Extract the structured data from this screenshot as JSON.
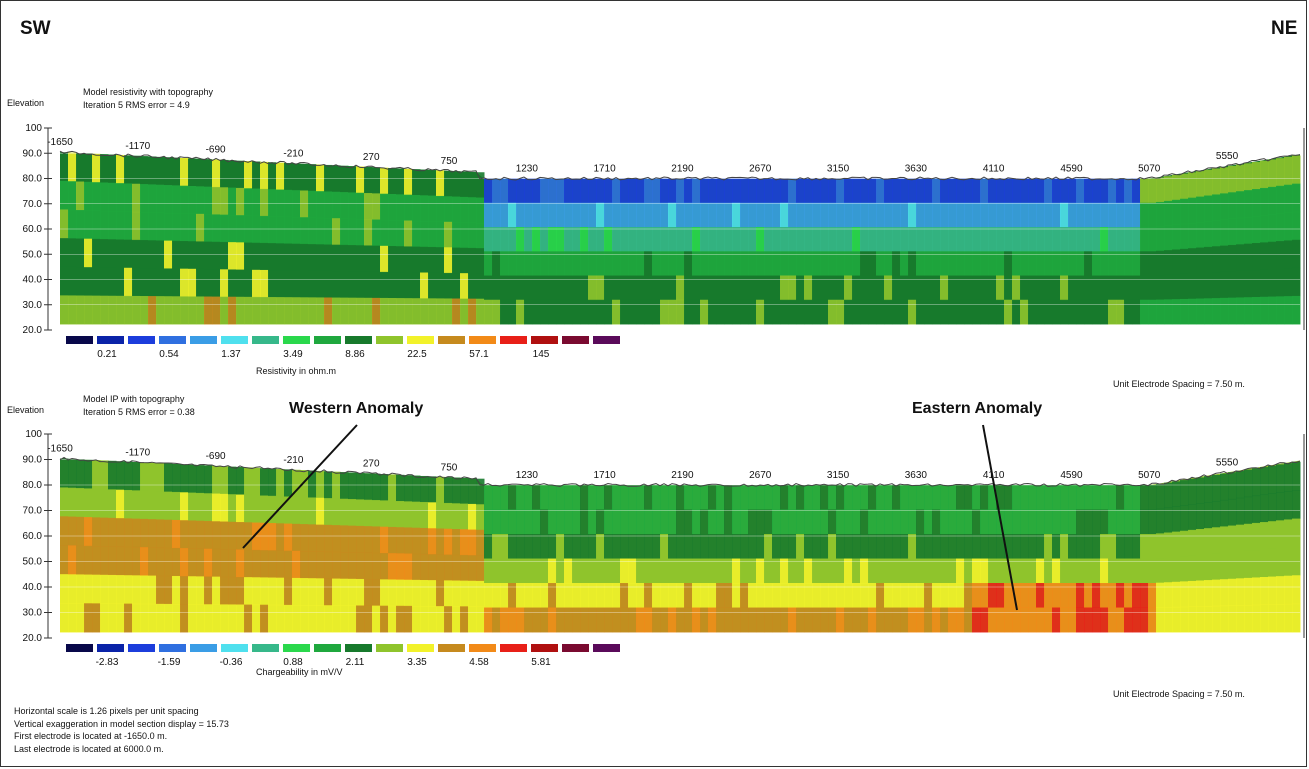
{
  "orientation": {
    "left": "SW",
    "right": "NE"
  },
  "annotations": {
    "western": "Western Anomaly",
    "eastern": "Eastern Anomaly"
  },
  "footer": {
    "line1": "Horizontal scale is 1.26 pixels per unit spacing",
    "line2": "Vertical exaggeration in model section display = 15.73",
    "line3": "First electrode is located at -1650.0  m.",
    "line4": "Last electrode is located at 6000.0 m."
  },
  "chart_data": [
    {
      "type": "heatmap",
      "title": "Model resistivity with topography",
      "subtitle": "Iteration 5 RMS error = 4.9",
      "ylabel": "Elevation",
      "yticks": [
        "100",
        "90.0",
        "80.0",
        "70.0",
        "60.0",
        "50.0",
        "40.0",
        "30.0",
        "20.0"
      ],
      "ylim": [
        20,
        100
      ],
      "x_labels": [
        "-1650",
        "-1170",
        "-690",
        "-210",
        "270",
        "750",
        "1230",
        "1710",
        "2190",
        "2670",
        "3150",
        "3630",
        "4110",
        "4590",
        "5070",
        "5550"
      ],
      "xlim": [
        -1650,
        6000
      ],
      "colorbar": {
        "label": "Resistivity in ohm.m",
        "ticks": [
          "0.21",
          "0.54",
          "1.37",
          "3.49",
          "8.86",
          "22.5",
          "57.1",
          "145"
        ],
        "colors": [
          "#08084a",
          "#0a23a8",
          "#1c3ddc",
          "#2f6fe0",
          "#3a9de6",
          "#4fe0ee",
          "#36b88a",
          "#2ad84c",
          "#1fa83e",
          "#177a2c",
          "#8fc42c",
          "#f2f22a",
          "#c68a1e",
          "#f28a18",
          "#e82018",
          "#b01010",
          "#7a0a30",
          "#5a0a5a"
        ]
      },
      "electrode_spacing": "Unit Electrode Spacing = 7.50 m."
    },
    {
      "type": "heatmap",
      "title": "Model IP with topography",
      "subtitle": "Iteration 5 RMS error = 0.38",
      "ylabel": "Elevation",
      "yticks": [
        "100",
        "90.0",
        "80.0",
        "70.0",
        "60.0",
        "50.0",
        "40.0",
        "30.0",
        "20.0"
      ],
      "ylim": [
        20,
        100
      ],
      "x_labels": [
        "-1650",
        "-1170",
        "-690",
        "-210",
        "270",
        "750",
        "1230",
        "1710",
        "2190",
        "2670",
        "3150",
        "3630",
        "4110",
        "4590",
        "5070",
        "5550"
      ],
      "xlim": [
        -1650,
        6000
      ],
      "colorbar": {
        "label": "Chargeability in mV/V",
        "ticks": [
          "-2.83",
          "-1.59",
          "-0.36",
          "0.88",
          "2.11",
          "3.35",
          "4.58",
          "5.81"
        ],
        "colors": [
          "#08084a",
          "#0a23a8",
          "#1c3ddc",
          "#2f6fe0",
          "#3a9de6",
          "#4fe0ee",
          "#36b88a",
          "#2ad84c",
          "#1fa83e",
          "#177a2c",
          "#8fc42c",
          "#f2f22a",
          "#c68a1e",
          "#f28a18",
          "#e82018",
          "#b01010",
          "#7a0a30",
          "#5a0a5a"
        ]
      },
      "electrode_spacing": "Unit Electrode Spacing = 7.50 m."
    }
  ]
}
